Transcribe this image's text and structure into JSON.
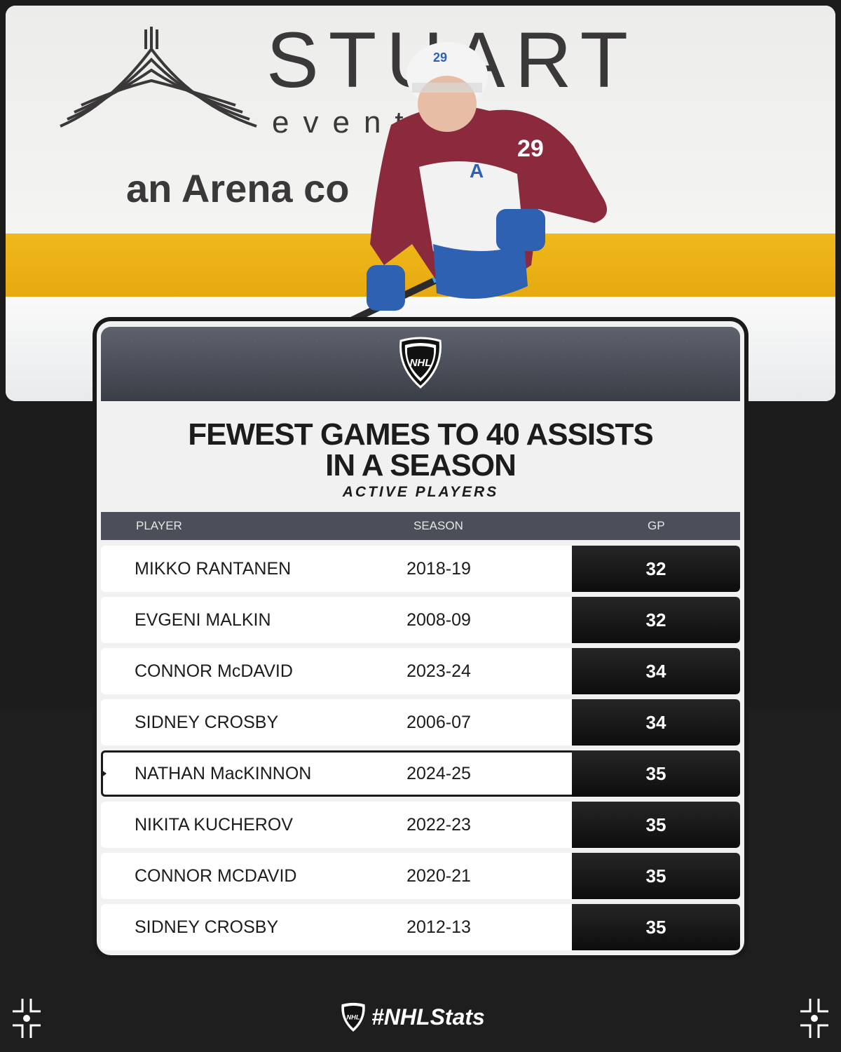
{
  "background": {
    "ad_brand": "STUART",
    "ad_tagline": "event",
    "ad_line2": "an Arena co",
    "jersey_number": "29",
    "accent_colors": {
      "burgundy": "#8a2a3c",
      "blue": "#2f61b3",
      "gold": "#f0b81a"
    }
  },
  "card": {
    "logo_icon": "nhl-shield-icon",
    "title_line1": "FEWEST GAMES TO 40 ASSISTS",
    "title_line2": "IN A SEASON",
    "subtitle": "ACTIVE PLAYERS",
    "columns": {
      "player": "PLAYER",
      "season": "SEASON",
      "gp": "GP"
    },
    "rows": [
      {
        "player": "MIKKO RANTANEN",
        "season": "2018-19",
        "gp": "32",
        "highlight": false
      },
      {
        "player": "EVGENI MALKIN",
        "season": "2008-09",
        "gp": "32",
        "highlight": false
      },
      {
        "player": "CONNOR McDAVID",
        "season": "2023-24",
        "gp": "34",
        "highlight": false
      },
      {
        "player": "SIDNEY CROSBY",
        "season": "2006-07",
        "gp": "34",
        "highlight": false
      },
      {
        "player": "NATHAN MacKINNON",
        "season": "2024-25",
        "gp": "35",
        "highlight": true
      },
      {
        "player": "NIKITA KUCHEROV",
        "season": "2022-23",
        "gp": "35",
        "highlight": false
      },
      {
        "player": "CONNOR MCDAVID",
        "season": "2020-21",
        "gp": "35",
        "highlight": false
      },
      {
        "player": "SIDNEY CROSBY",
        "season": "2012-13",
        "gp": "35",
        "highlight": false
      }
    ]
  },
  "footer": {
    "hashtag": "#NHLStats",
    "logo_icon": "nhl-shield-icon",
    "corner_icon": "crosshair-icon"
  }
}
